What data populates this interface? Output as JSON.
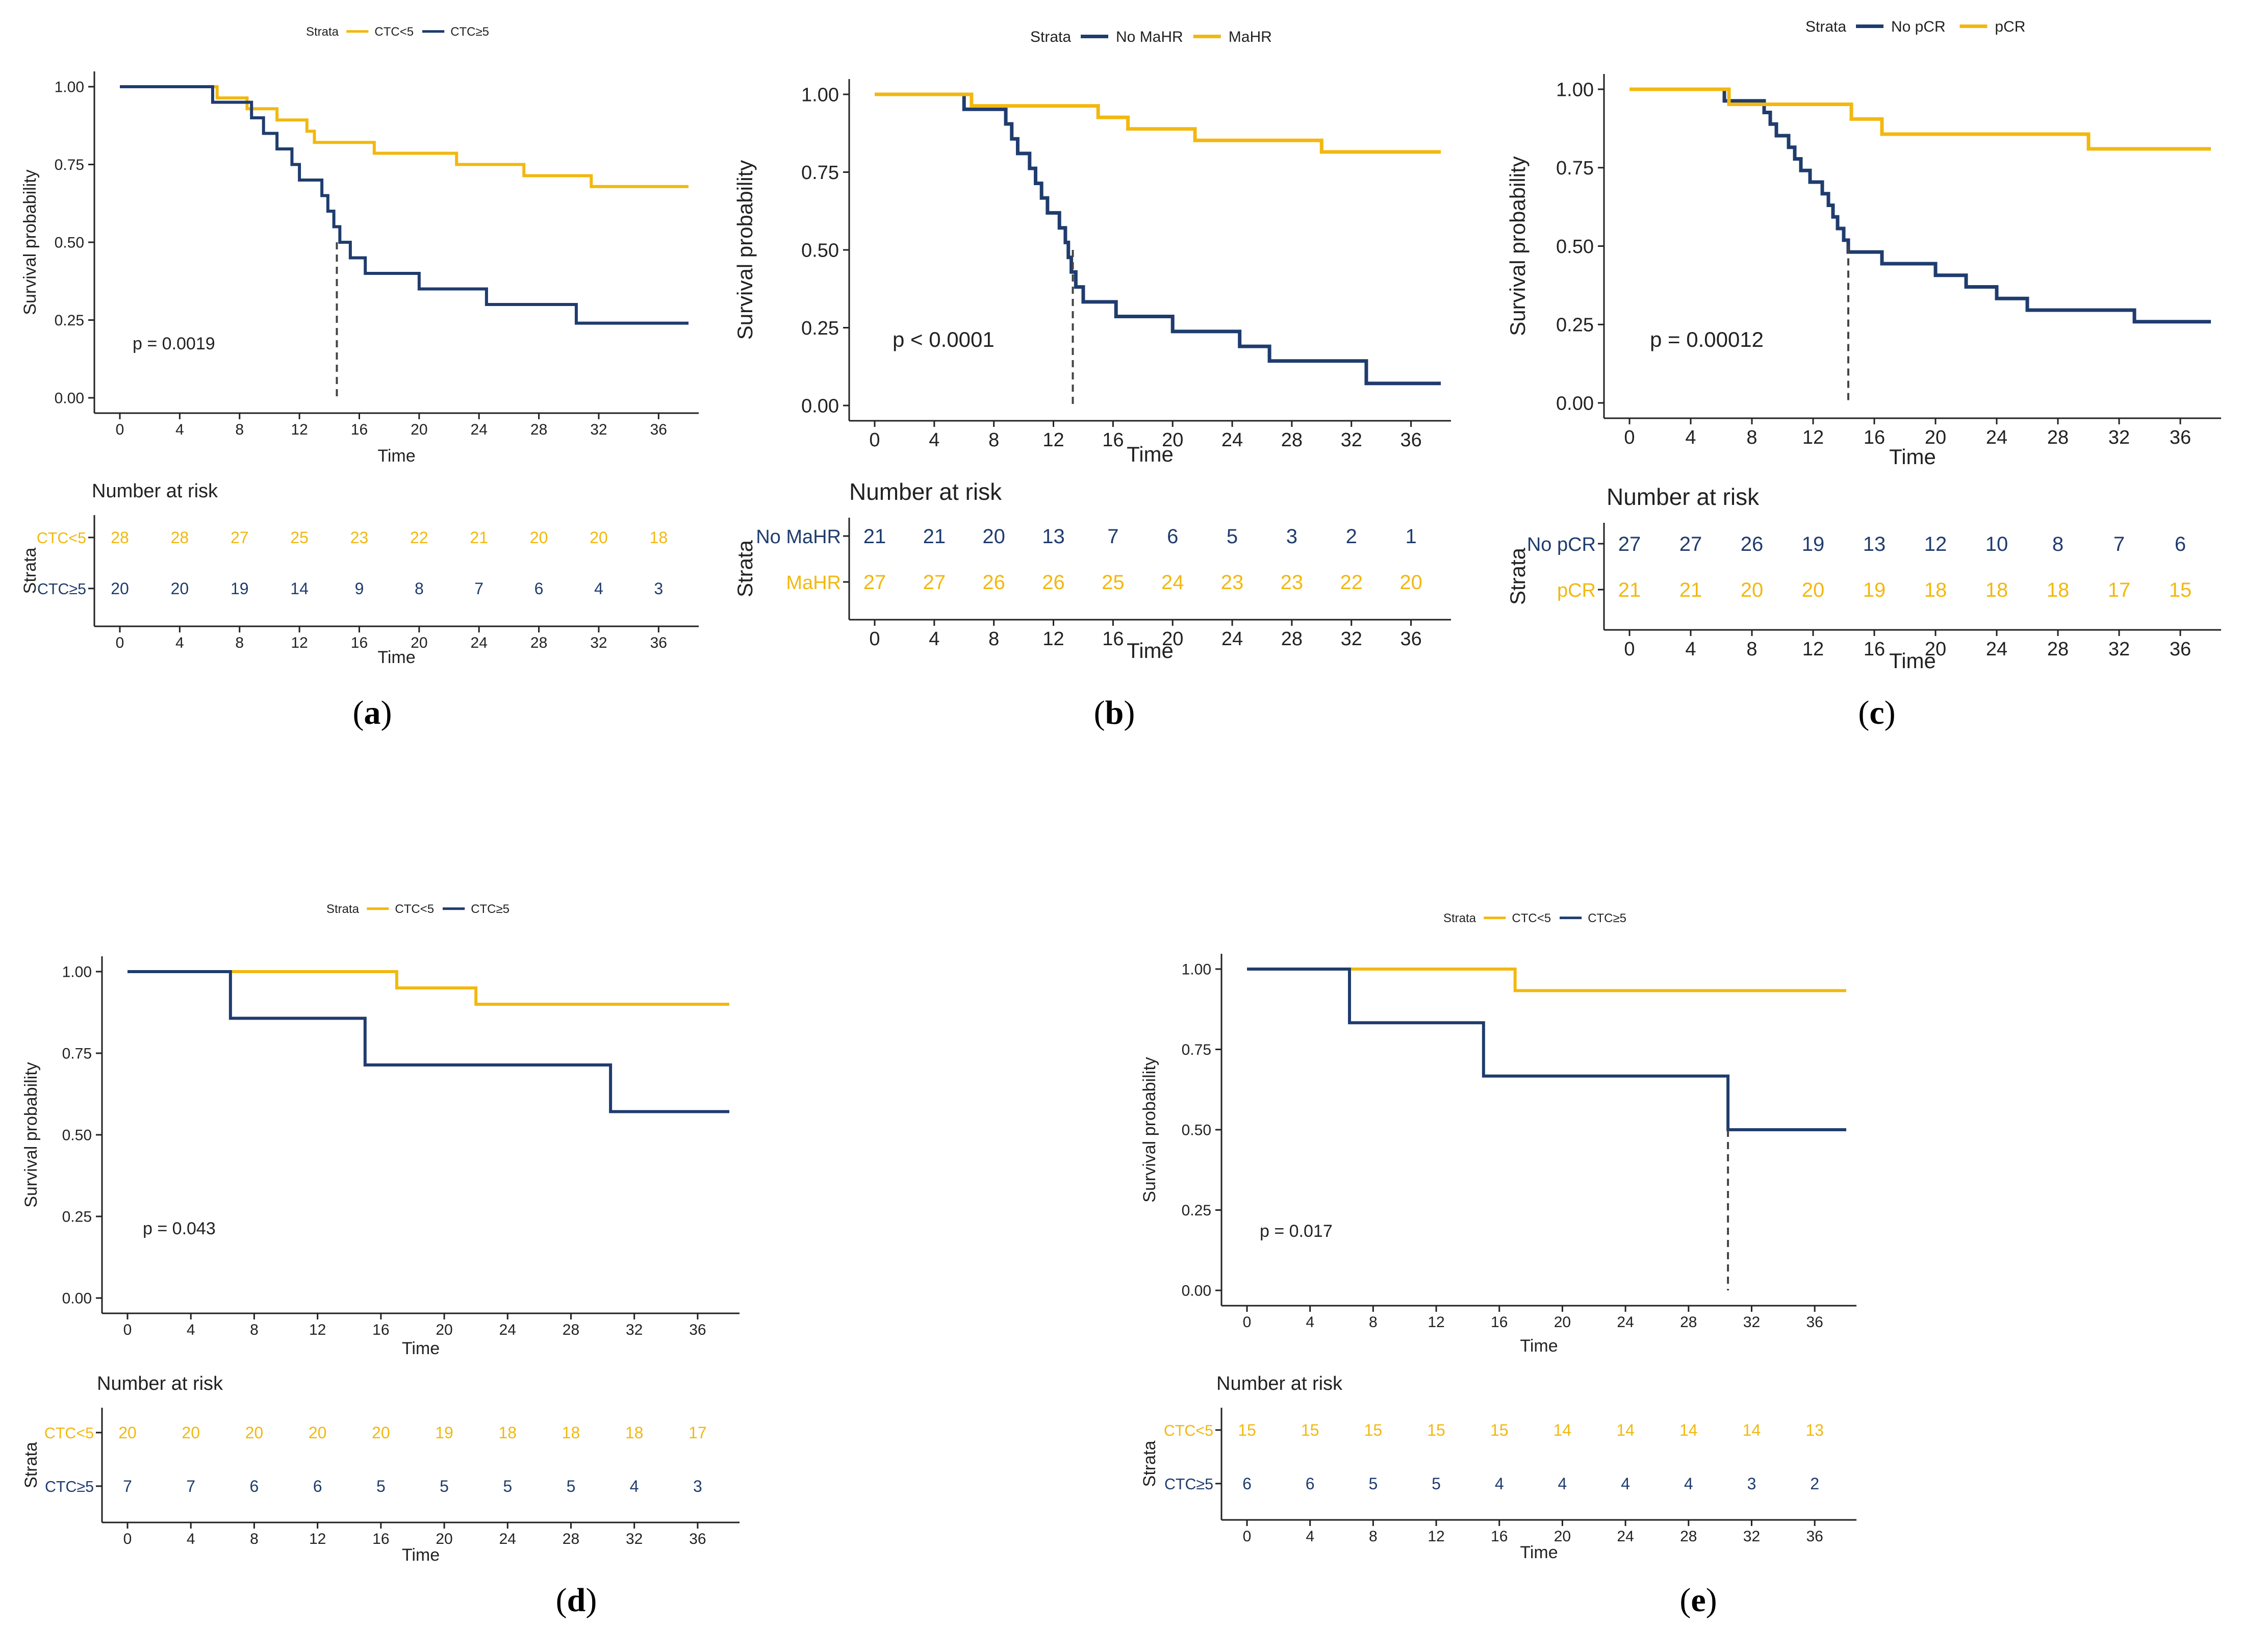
{
  "colors": {
    "low": "#F2B80F",
    "high": "#1F3C6E",
    "axis": "#222222",
    "text": "#222222",
    "median": "#444444"
  },
  "panels": [
    {
      "id": "a",
      "label": "a",
      "legend_title": "Strata",
      "series": [
        {
          "name": "CTC<5",
          "color": "#F2B80F",
          "steps": [
            [
              0,
              1
            ],
            [
              6.5,
              0.964
            ],
            [
              8.5,
              0.929
            ],
            [
              10.5,
              0.893
            ],
            [
              12.5,
              0.857
            ],
            [
              13,
              0.821
            ],
            [
              17,
              0.786
            ],
            [
              22.5,
              0.75
            ],
            [
              27,
              0.714
            ],
            [
              31.5,
              0.679
            ],
            [
              38,
              0.679
            ]
          ]
        },
        {
          "name": "CTC≥5",
          "color": "#1F3C6E",
          "steps": [
            [
              0,
              1
            ],
            [
              6.2,
              0.95
            ],
            [
              8.8,
              0.9
            ],
            [
              9.6,
              0.85
            ],
            [
              10.5,
              0.8
            ],
            [
              11.5,
              0.75
            ],
            [
              12,
              0.7
            ],
            [
              13.5,
              0.65
            ],
            [
              13.9,
              0.6
            ],
            [
              14.3,
              0.55
            ],
            [
              14.7,
              0.5
            ],
            [
              15.4,
              0.45
            ],
            [
              16.4,
              0.4
            ],
            [
              20,
              0.35
            ],
            [
              24.5,
              0.3
            ],
            [
              30.5,
              0.24
            ],
            [
              38,
              0.24
            ]
          ]
        }
      ],
      "median_x": 14.5,
      "p_value": "p = 0.0019",
      "xlabel": "Time",
      "ylabel": "Survival probability",
      "xticks": [
        "0",
        "4",
        "8",
        "12",
        "16",
        "20",
        "24",
        "28",
        "32",
        "36"
      ],
      "yticks": [
        "0.00",
        "0.25",
        "0.50",
        "0.75",
        "1.00"
      ],
      "risk_title": "Number at risk",
      "risk_ylabel": "Strata",
      "risk_rows": [
        {
          "label": "CTC<5",
          "color": "#F2B80F",
          "values": [
            "28",
            "28",
            "27",
            "25",
            "23",
            "22",
            "21",
            "20",
            "20",
            "18"
          ]
        },
        {
          "label": "CTC≥5",
          "color": "#1F3C6E",
          "values": [
            "20",
            "20",
            "19",
            "14",
            "9",
            "8",
            "7",
            "6",
            "4",
            "3"
          ]
        }
      ]
    },
    {
      "id": "b",
      "label": "b",
      "legend_title": "Strata",
      "series": [
        {
          "name": "No MaHR",
          "color": "#1F3C6E",
          "steps": [
            [
              0,
              1
            ],
            [
              6,
              0.952
            ],
            [
              8.8,
              0.905
            ],
            [
              9.2,
              0.857
            ],
            [
              9.6,
              0.81
            ],
            [
              10.4,
              0.762
            ],
            [
              10.8,
              0.714
            ],
            [
              11.2,
              0.667
            ],
            [
              11.6,
              0.619
            ],
            [
              12.4,
              0.571
            ],
            [
              12.8,
              0.524
            ],
            [
              13,
              0.476
            ],
            [
              13.2,
              0.429
            ],
            [
              13.5,
              0.381
            ],
            [
              14,
              0.333
            ],
            [
              16.2,
              0.286
            ],
            [
              20,
              0.238
            ],
            [
              24.5,
              0.19
            ],
            [
              26.5,
              0.143
            ],
            [
              33,
              0.071
            ],
            [
              38,
              0.071
            ]
          ]
        },
        {
          "name": "MaHR",
          "color": "#F2B80F",
          "steps": [
            [
              0,
              1
            ],
            [
              6.5,
              0.963
            ],
            [
              15,
              0.926
            ],
            [
              17,
              0.889
            ],
            [
              21.5,
              0.852
            ],
            [
              30,
              0.815
            ],
            [
              38,
              0.815
            ]
          ]
        }
      ],
      "median_x": 13.3,
      "p_value": "p < 0.0001",
      "xlabel": "Time",
      "ylabel": "Survival probability",
      "xticks": [
        "0",
        "4",
        "8",
        "12",
        "16",
        "20",
        "24",
        "28",
        "32",
        "36"
      ],
      "yticks": [
        "0.00",
        "0.25",
        "0.50",
        "0.75",
        "1.00"
      ],
      "risk_title": "Number at risk",
      "risk_ylabel": "Strata",
      "risk_rows": [
        {
          "label": "No MaHR",
          "color": "#1F3C6E",
          "values": [
            "21",
            "21",
            "20",
            "13",
            "7",
            "6",
            "5",
            "3",
            "2",
            "1"
          ]
        },
        {
          "label": "MaHR",
          "color": "#F2B80F",
          "values": [
            "27",
            "27",
            "26",
            "26",
            "25",
            "24",
            "23",
            "23",
            "22",
            "20"
          ]
        }
      ]
    },
    {
      "id": "c",
      "label": "c",
      "legend_title": "Strata",
      "series": [
        {
          "name": "No pCR",
          "color": "#1F3C6E",
          "steps": [
            [
              0,
              1
            ],
            [
              6.2,
              0.963
            ],
            [
              8.8,
              0.926
            ],
            [
              9.2,
              0.889
            ],
            [
              9.6,
              0.852
            ],
            [
              10.4,
              0.815
            ],
            [
              10.8,
              0.778
            ],
            [
              11.2,
              0.741
            ],
            [
              11.8,
              0.704
            ],
            [
              12.6,
              0.667
            ],
            [
              13,
              0.63
            ],
            [
              13.3,
              0.593
            ],
            [
              13.6,
              0.556
            ],
            [
              14,
              0.519
            ],
            [
              14.3,
              0.481
            ],
            [
              16.5,
              0.444
            ],
            [
              20,
              0.407
            ],
            [
              22,
              0.37
            ],
            [
              24,
              0.333
            ],
            [
              26,
              0.296
            ],
            [
              33,
              0.259
            ],
            [
              38,
              0.259
            ]
          ]
        },
        {
          "name": "pCR",
          "color": "#F2B80F",
          "steps": [
            [
              0,
              1
            ],
            [
              6.5,
              0.952
            ],
            [
              14.5,
              0.905
            ],
            [
              16.5,
              0.857
            ],
            [
              30,
              0.81
            ],
            [
              38,
              0.81
            ]
          ]
        }
      ],
      "median_x": 14.3,
      "p_value": "p = 0.00012",
      "xlabel": "Time",
      "ylabel": "Survival probability",
      "xticks": [
        "0",
        "4",
        "8",
        "12",
        "16",
        "20",
        "24",
        "28",
        "32",
        "36"
      ],
      "yticks": [
        "0.00",
        "0.25",
        "0.50",
        "0.75",
        "1.00"
      ],
      "risk_title": "Number at risk",
      "risk_ylabel": "Strata",
      "risk_rows": [
        {
          "label": "No pCR",
          "color": "#1F3C6E",
          "values": [
            "27",
            "27",
            "26",
            "19",
            "13",
            "12",
            "10",
            "8",
            "7",
            "6"
          ]
        },
        {
          "label": "pCR",
          "color": "#F2B80F",
          "values": [
            "21",
            "21",
            "20",
            "20",
            "19",
            "18",
            "18",
            "18",
            "17",
            "15"
          ]
        }
      ]
    },
    {
      "id": "d",
      "label": "d",
      "legend_title": "Strata",
      "series": [
        {
          "name": "CTC<5",
          "color": "#F2B80F",
          "steps": [
            [
              0,
              1
            ],
            [
              17,
              0.95
            ],
            [
              22,
              0.9
            ],
            [
              38,
              0.9
            ]
          ]
        },
        {
          "name": "CTC≥5",
          "color": "#1F3C6E",
          "steps": [
            [
              0,
              1
            ],
            [
              6.5,
              0.857
            ],
            [
              15,
              0.714
            ],
            [
              30.5,
              0.571
            ],
            [
              38,
              0.571
            ]
          ]
        }
      ],
      "median_x": null,
      "p_value": "p = 0.043",
      "xlabel": "Time",
      "ylabel": "Survival probability",
      "xticks": [
        "0",
        "4",
        "8",
        "12",
        "16",
        "20",
        "24",
        "28",
        "32",
        "36"
      ],
      "yticks": [
        "0.00",
        "0.25",
        "0.50",
        "0.75",
        "1.00"
      ],
      "risk_title": "Number at risk",
      "risk_ylabel": "Strata",
      "risk_rows": [
        {
          "label": "CTC<5",
          "color": "#F2B80F",
          "values": [
            "20",
            "20",
            "20",
            "20",
            "20",
            "19",
            "18",
            "18",
            "18",
            "17"
          ]
        },
        {
          "label": "CTC≥5",
          "color": "#1F3C6E",
          "values": [
            "7",
            "7",
            "6",
            "6",
            "5",
            "5",
            "5",
            "5",
            "4",
            "3"
          ]
        }
      ]
    },
    {
      "id": "e",
      "label": "e",
      "legend_title": "Strata",
      "series": [
        {
          "name": "CTC<5",
          "color": "#F2B80F",
          "steps": [
            [
              0,
              1
            ],
            [
              17,
              0.933
            ],
            [
              38,
              0.933
            ]
          ]
        },
        {
          "name": "CTC≥5",
          "color": "#1F3C6E",
          "steps": [
            [
              0,
              1
            ],
            [
              6.5,
              0.833
            ],
            [
              15,
              0.667
            ],
            [
              30.5,
              0.5
            ],
            [
              38,
              0.5
            ]
          ]
        }
      ],
      "median_x": 30.5,
      "p_value": "p = 0.017",
      "xlabel": "Time",
      "ylabel": "Survival probability",
      "xticks": [
        "0",
        "4",
        "8",
        "12",
        "16",
        "20",
        "24",
        "28",
        "32",
        "36"
      ],
      "yticks": [
        "0.00",
        "0.25",
        "0.50",
        "0.75",
        "1.00"
      ],
      "risk_title": "Number at risk",
      "risk_ylabel": "Strata",
      "risk_rows": [
        {
          "label": "CTC<5",
          "color": "#F2B80F",
          "values": [
            "15",
            "15",
            "15",
            "15",
            "15",
            "14",
            "14",
            "14",
            "14",
            "13"
          ]
        },
        {
          "label": "CTC≥5",
          "color": "#1F3C6E",
          "values": [
            "6",
            "6",
            "5",
            "5",
            "4",
            "4",
            "4",
            "4",
            "3",
            "2"
          ]
        }
      ]
    }
  ],
  "chart_data": [
    {
      "type": "line",
      "panel": "a",
      "title": "",
      "xlabel": "Time",
      "ylabel": "Survival probability",
      "xlim": [
        0,
        38
      ],
      "ylim": [
        0,
        1
      ],
      "series": [
        {
          "name": "CTC<5",
          "x": [
            0,
            6.5,
            8.5,
            10.5,
            12.5,
            13,
            17,
            22.5,
            27,
            31.5,
            38
          ],
          "values": [
            1,
            0.964,
            0.929,
            0.893,
            0.857,
            0.821,
            0.786,
            0.75,
            0.714,
            0.679,
            0.679
          ]
        },
        {
          "name": "CTC≥5",
          "x": [
            0,
            6.2,
            8.8,
            9.6,
            10.5,
            11.5,
            12,
            13.5,
            13.9,
            14.3,
            14.7,
            15.4,
            16.4,
            20,
            24.5,
            30.5,
            38
          ],
          "values": [
            1,
            0.95,
            0.9,
            0.85,
            0.8,
            0.75,
            0.7,
            0.65,
            0.6,
            0.55,
            0.5,
            0.45,
            0.4,
            0.35,
            0.3,
            0.24,
            0.24
          ]
        }
      ],
      "annotation": "p = 0.0019"
    },
    {
      "type": "line",
      "panel": "b",
      "title": "",
      "xlabel": "Time",
      "ylabel": "Survival probability",
      "xlim": [
        0,
        38
      ],
      "ylim": [
        0,
        1
      ],
      "series": [
        {
          "name": "No MaHR",
          "x": [
            0,
            6,
            8.8,
            9.2,
            9.6,
            10.4,
            10.8,
            11.2,
            11.6,
            12.4,
            12.8,
            13,
            13.2,
            13.5,
            14,
            16.2,
            20,
            24.5,
            26.5,
            33,
            38
          ],
          "values": [
            1,
            0.952,
            0.905,
            0.857,
            0.81,
            0.762,
            0.714,
            0.667,
            0.619,
            0.571,
            0.524,
            0.476,
            0.429,
            0.381,
            0.333,
            0.286,
            0.238,
            0.19,
            0.143,
            0.071,
            0.071
          ]
        },
        {
          "name": "MaHR",
          "x": [
            0,
            6.5,
            15,
            17,
            21.5,
            30,
            38
          ],
          "values": [
            1,
            0.963,
            0.926,
            0.889,
            0.852,
            0.815,
            0.815
          ]
        }
      ],
      "annotation": "p < 0.0001"
    },
    {
      "type": "line",
      "panel": "c",
      "title": "",
      "xlabel": "Time",
      "ylabel": "Survival probability",
      "xlim": [
        0,
        38
      ],
      "ylim": [
        0,
        1
      ],
      "series": [
        {
          "name": "No pCR",
          "x": [
            0,
            6.2,
            8.8,
            9.2,
            9.6,
            10.4,
            10.8,
            11.2,
            11.8,
            12.6,
            13,
            13.3,
            13.6,
            14,
            14.3,
            16.5,
            20,
            22,
            24,
            26,
            33,
            38
          ],
          "values": [
            1,
            0.963,
            0.926,
            0.889,
            0.852,
            0.815,
            0.778,
            0.741,
            0.704,
            0.667,
            0.63,
            0.593,
            0.556,
            0.519,
            0.481,
            0.444,
            0.407,
            0.37,
            0.333,
            0.296,
            0.259,
            0.259
          ]
        },
        {
          "name": "pCR",
          "x": [
            0,
            6.5,
            14.5,
            16.5,
            30,
            38
          ],
          "values": [
            1,
            0.952,
            0.905,
            0.857,
            0.81,
            0.81
          ]
        }
      ],
      "annotation": "p = 0.00012"
    },
    {
      "type": "line",
      "panel": "d",
      "title": "",
      "xlabel": "Time",
      "ylabel": "Survival probability",
      "xlim": [
        0,
        38
      ],
      "ylim": [
        0,
        1
      ],
      "series": [
        {
          "name": "CTC<5",
          "x": [
            0,
            17,
            22,
            38
          ],
          "values": [
            1,
            0.95,
            0.9,
            0.9
          ]
        },
        {
          "name": "CTC≥5",
          "x": [
            0,
            6.5,
            15,
            30.5,
            38
          ],
          "values": [
            1,
            0.857,
            0.714,
            0.571,
            0.571
          ]
        }
      ],
      "annotation": "p = 0.043"
    },
    {
      "type": "line",
      "panel": "e",
      "title": "",
      "xlabel": "Time",
      "ylabel": "Survival probability",
      "xlim": [
        0,
        38
      ],
      "ylim": [
        0,
        1
      ],
      "series": [
        {
          "name": "CTC<5",
          "x": [
            0,
            17,
            38
          ],
          "values": [
            1,
            0.933,
            0.933
          ]
        },
        {
          "name": "CTC≥5",
          "x": [
            0,
            6.5,
            15,
            30.5,
            38
          ],
          "values": [
            1,
            0.833,
            0.667,
            0.5,
            0.5
          ]
        }
      ],
      "annotation": "p = 0.017"
    }
  ]
}
